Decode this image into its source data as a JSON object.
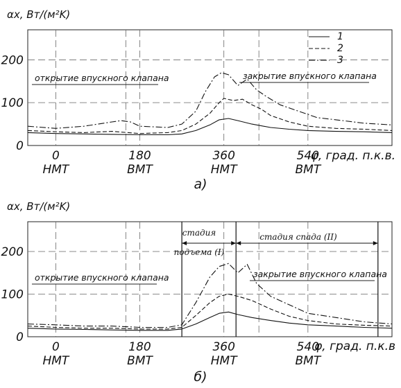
{
  "panel_labels": [
    "а)",
    "б)"
  ],
  "chart_data": [
    {
      "type": "line",
      "panel": "а)",
      "ylabel": "αx, Вт/(м²K)",
      "xlabel": "φ, град. п.к.в.",
      "x_ticks": [
        {
          "value": 0,
          "label": "0",
          "sublabel": "НМТ"
        },
        {
          "value": 180,
          "label": "180",
          "sublabel": "ВМТ"
        },
        {
          "value": 360,
          "label": "360",
          "sublabel": "НМТ"
        },
        {
          "value": 540,
          "label": "540",
          "sublabel": "ВМТ"
        }
      ],
      "y_ticks": [
        0,
        100,
        200
      ],
      "xlim": [
        -60,
        720
      ],
      "ylim": [
        0,
        270
      ],
      "grid": true,
      "legend_position": "top-right",
      "annotations": {
        "open_valve": "открытие впускного клапана",
        "close_valve": "закрытие впускного клапана"
      },
      "series": [
        {
          "name": "1",
          "style": "solid",
          "x": [
            -60,
            0,
            60,
            120,
            180,
            240,
            270,
            300,
            330,
            350,
            370,
            390,
            420,
            460,
            500,
            540,
            600,
            660,
            720
          ],
          "y": [
            30,
            28,
            27,
            26,
            25,
            25,
            27,
            35,
            48,
            60,
            63,
            58,
            50,
            42,
            38,
            35,
            33,
            32,
            30
          ]
        },
        {
          "name": "2",
          "style": "dashed",
          "x": [
            -60,
            0,
            60,
            120,
            180,
            240,
            270,
            300,
            330,
            350,
            360,
            380,
            400,
            420,
            440,
            460,
            500,
            540,
            600,
            660,
            720
          ],
          "y": [
            35,
            32,
            30,
            33,
            28,
            30,
            35,
            50,
            75,
            100,
            110,
            105,
            108,
            95,
            85,
            70,
            55,
            45,
            40,
            38,
            35
          ]
        },
        {
          "name": "3",
          "style": "dashdot",
          "x": [
            -60,
            0,
            60,
            120,
            140,
            160,
            180,
            240,
            270,
            300,
            320,
            340,
            355,
            370,
            390,
            410,
            430,
            450,
            480,
            520,
            560,
            600,
            660,
            720
          ],
          "y": [
            45,
            40,
            45,
            55,
            58,
            55,
            45,
            42,
            50,
            80,
            125,
            160,
            170,
            165,
            140,
            155,
            130,
            115,
            95,
            80,
            65,
            60,
            52,
            48
          ]
        }
      ]
    },
    {
      "type": "line",
      "panel": "б)",
      "ylabel": "αx, Вт/(м²K)",
      "xlabel": "φ, град. п.к.в",
      "x_ticks": [
        {
          "value": 0,
          "label": "0",
          "sublabel": "НМТ"
        },
        {
          "value": 180,
          "label": "180",
          "sublabel": "ВМТ"
        },
        {
          "value": 360,
          "label": "360",
          "sublabel": "НМТ"
        },
        {
          "value": 540,
          "label": "540",
          "sublabel": "ВМТ"
        }
      ],
      "y_ticks": [
        0,
        100,
        200
      ],
      "xlim": [
        -60,
        720
      ],
      "ylim": [
        0,
        270
      ],
      "grid": true,
      "annotations": {
        "open_valve": "открытие впускного клапана",
        "close_valve": "закрытие впускного клапана",
        "stage_rise": "стадия подъема (I)",
        "stage_rise_line1": "стадия",
        "stage_rise_line2": "подъема (I)",
        "stage_decline": "стадия спада (II)"
      },
      "stage_bounds": [
        270,
        386,
        690
      ],
      "series": [
        {
          "name": "1",
          "style": "solid",
          "x": [
            -60,
            0,
            60,
            120,
            180,
            240,
            270,
            300,
            330,
            350,
            370,
            390,
            420,
            460,
            500,
            540,
            600,
            660,
            720
          ],
          "y": [
            20,
            18,
            17,
            16,
            15,
            15,
            18,
            30,
            45,
            55,
            58,
            52,
            45,
            38,
            32,
            28,
            25,
            22,
            20
          ]
        },
        {
          "name": "2",
          "style": "dashed",
          "x": [
            -60,
            0,
            60,
            120,
            180,
            240,
            270,
            300,
            330,
            350,
            370,
            390,
            420,
            460,
            500,
            540,
            600,
            660,
            720
          ],
          "y": [
            25,
            22,
            20,
            20,
            18,
            18,
            22,
            50,
            80,
            95,
            100,
            95,
            85,
            65,
            48,
            38,
            30,
            27,
            25
          ]
        },
        {
          "name": "3",
          "style": "dashdot",
          "x": [
            -60,
            0,
            60,
            120,
            180,
            240,
            270,
            300,
            330,
            350,
            370,
            390,
            410,
            430,
            460,
            500,
            540,
            600,
            660,
            720
          ],
          "y": [
            30,
            28,
            25,
            25,
            22,
            22,
            28,
            80,
            140,
            165,
            172,
            150,
            170,
            125,
            95,
            75,
            55,
            45,
            35,
            30
          ]
        }
      ]
    }
  ]
}
